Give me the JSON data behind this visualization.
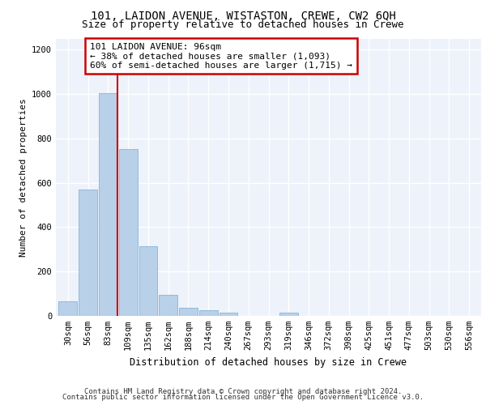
{
  "title": "101, LAIDON AVENUE, WISTASTON, CREWE, CW2 6QH",
  "subtitle": "Size of property relative to detached houses in Crewe",
  "xlabel": "Distribution of detached houses by size in Crewe",
  "ylabel": "Number of detached properties",
  "categories": [
    "30sqm",
    "56sqm",
    "83sqm",
    "109sqm",
    "135sqm",
    "162sqm",
    "188sqm",
    "214sqm",
    "240sqm",
    "267sqm",
    "293sqm",
    "319sqm",
    "346sqm",
    "372sqm",
    "398sqm",
    "425sqm",
    "451sqm",
    "477sqm",
    "503sqm",
    "530sqm",
    "556sqm"
  ],
  "values": [
    65,
    570,
    1005,
    750,
    315,
    95,
    38,
    25,
    13,
    0,
    0,
    14,
    0,
    0,
    0,
    0,
    0,
    0,
    0,
    0,
    0
  ],
  "bar_color": "#b8d0e8",
  "bar_edge_color": "#8ab4d4",
  "property_line_color": "#cc0000",
  "annotation_text": "101 LAIDON AVENUE: 96sqm\n← 38% of detached houses are smaller (1,093)\n60% of semi-detached houses are larger (1,715) →",
  "annotation_box_color": "#cc0000",
  "ylim": [
    0,
    1250
  ],
  "yticks": [
    0,
    200,
    400,
    600,
    800,
    1000,
    1200
  ],
  "footer_line1": "Contains HM Land Registry data © Crown copyright and database right 2024.",
  "footer_line2": "Contains public sector information licensed under the Open Government Licence v3.0.",
  "background_color": "#eef2fb",
  "grid_color": "#ffffff",
  "title_fontsize": 10,
  "subtitle_fontsize": 9,
  "axis_label_fontsize": 8,
  "tick_fontsize": 7.5,
  "annotation_fontsize": 8,
  "footer_fontsize": 6.5
}
